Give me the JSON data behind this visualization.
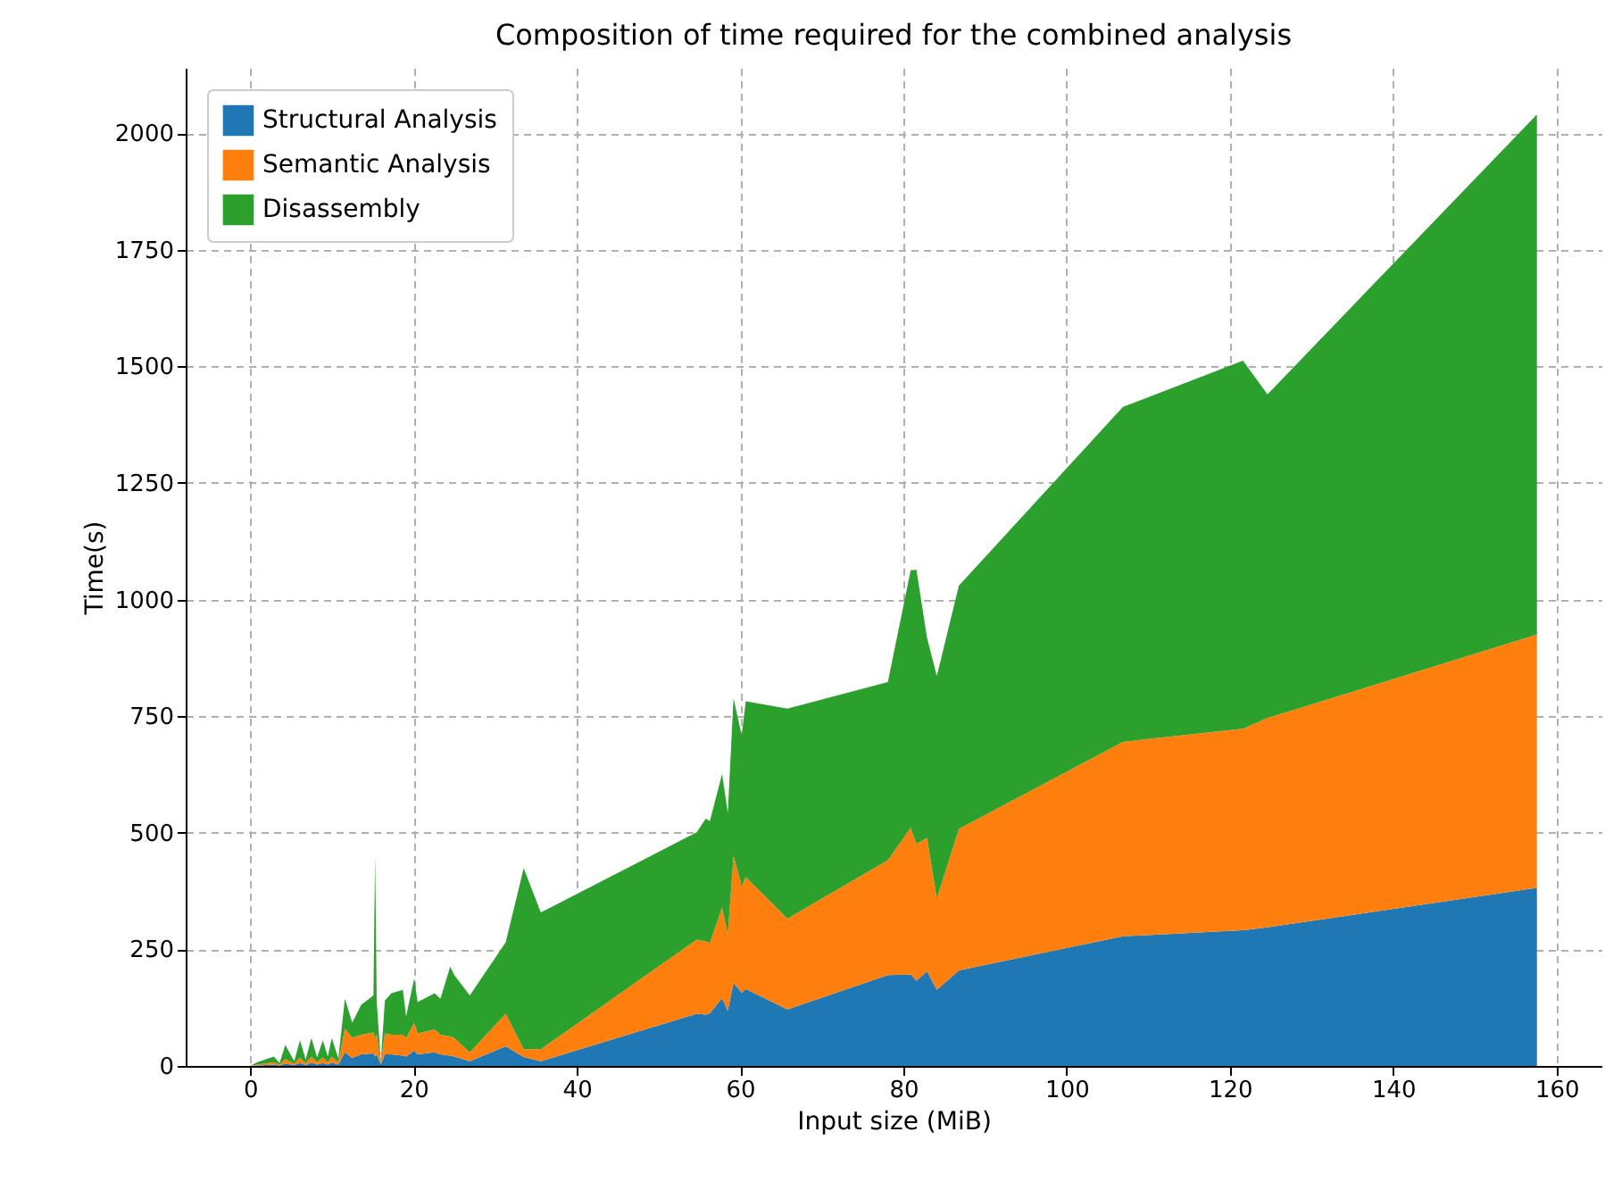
{
  "chart_data": {
    "type": "area",
    "title": "Composition of time required for the combined analysis",
    "xlabel": "Input size (MiB)",
    "ylabel": "Time(s)",
    "stacked": true,
    "grid": true,
    "legend": "top left",
    "xlim": [
      -7.9,
      165.5
    ],
    "ylim": [
      0,
      2140
    ],
    "xticks": [
      0,
      20,
      40,
      60,
      80,
      100,
      120,
      140,
      160
    ],
    "yticks": [
      0,
      250,
      500,
      750,
      1000,
      1250,
      1500,
      1750,
      2000
    ],
    "x": [
      0,
      0.9,
      2.9,
      3.6,
      4.3,
      5.4,
      6.1,
      6.8,
      7.5,
      8.2,
      8.9,
      9.5,
      10.0,
      10.8,
      11.6,
      12.5,
      13.6,
      15.1,
      15.3,
      15.5,
      16.0,
      16.5,
      17.3,
      18.7,
      19.1,
      20.1,
      20.5,
      22.6,
      23.3,
      24.5,
      25.0,
      26.9,
      31.3,
      33.5,
      35.6,
      54.7,
      55.8,
      56.3,
      57.8,
      58.5,
      59.2,
      60.2,
      60.7,
      65.8,
      78.1,
      80.9,
      81.6,
      82.9,
      84.1,
      86.8,
      106.9,
      121.6,
      124.6,
      157.6
    ],
    "series": [
      {
        "name": "Structural Analysis",
        "color": "#1f77b4",
        "values": [
          0,
          1,
          3,
          1,
          5,
          2,
          6,
          2,
          7,
          3,
          6,
          3,
          7,
          3,
          29,
          17,
          25,
          27,
          20,
          25,
          3,
          25,
          25,
          22,
          20,
          33,
          25,
          29,
          25,
          22,
          20,
          10,
          42,
          19,
          10,
          112,
          110,
          113,
          145,
          118,
          178,
          157,
          165,
          121,
          195,
          196,
          183,
          203,
          163,
          205,
          278,
          291,
          297,
          382
        ]
      },
      {
        "name": "Semantic Analysis",
        "color": "#ff7f0e",
        "values": [
          0,
          2,
          5,
          2,
          10,
          3,
          12,
          4,
          13,
          5,
          12,
          5,
          13,
          5,
          51,
          44,
          42,
          45,
          40,
          42,
          4,
          45,
          42,
          45,
          40,
          60,
          45,
          49,
          42,
          41,
          40,
          19,
          70,
          17,
          26,
          159,
          157,
          150,
          195,
          164,
          273,
          229,
          240,
          195,
          246,
          315,
          293,
          286,
          196,
          303,
          417,
          432,
          449,
          543
        ]
      },
      {
        "name": "Disassembly",
        "color": "#2ca02c",
        "values": [
          0,
          5,
          12,
          3,
          30,
          5,
          37,
          8,
          40,
          10,
          37,
          12,
          40,
          8,
          64,
          32,
          64,
          79,
          390,
          70,
          3,
          70,
          89,
          96,
          46,
          95,
          67,
          78,
          77,
          150,
          135,
          122,
          153,
          388,
          293,
          230,
          263,
          262,
          286,
          261,
          337,
          323,
          377,
          450,
          382,
          552,
          588,
          429,
          477,
          522,
          718,
          789,
          694,
          1115
        ]
      }
    ]
  }
}
